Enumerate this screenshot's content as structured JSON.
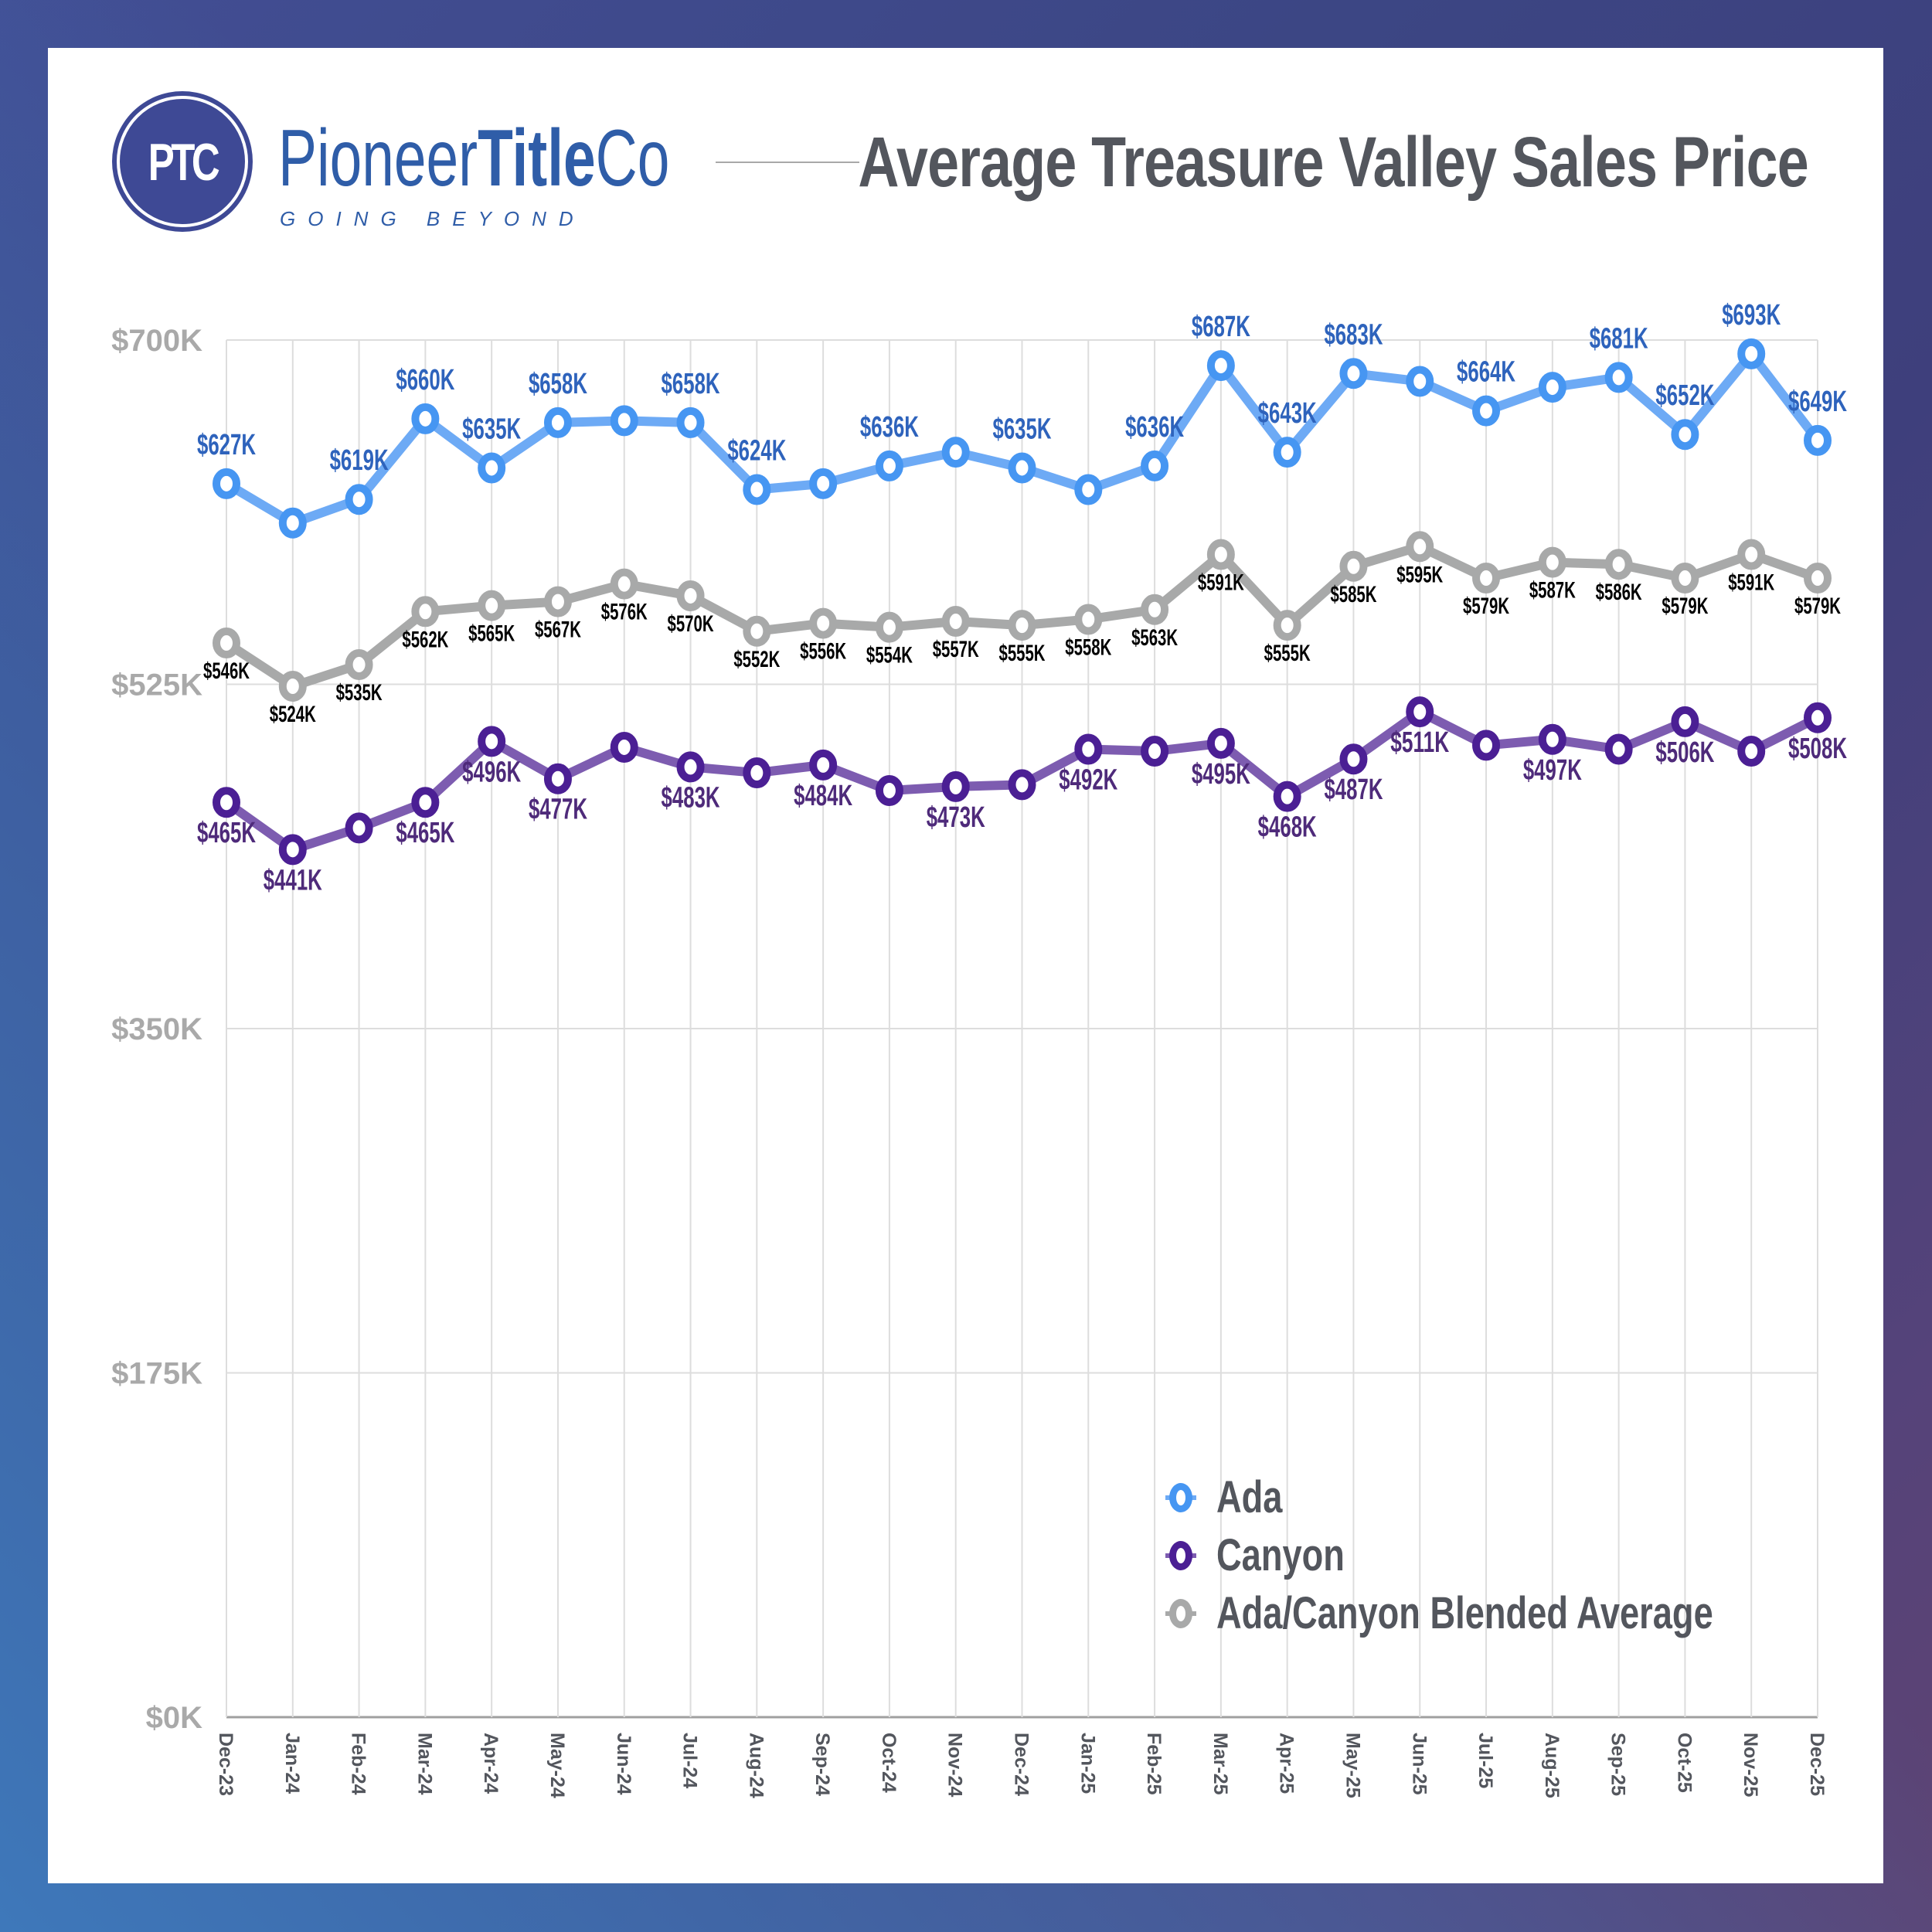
{
  "header": {
    "logo_monogram": "PTC",
    "brand_regular": "Pioneer",
    "brand_bold": "Title",
    "brand_suffix": "Co",
    "tagline": "GOING BEYOND",
    "title": "Average Treasure Valley Sales Price"
  },
  "colors": {
    "ada": "#4696F2",
    "ada_line": "#6DAAF5",
    "ada_label": "#2E63BC",
    "canyon": "#4B1F94",
    "canyon_line": "#7D5CB0",
    "canyon_label": "#4E2A7A",
    "blended": "#A8A9A9",
    "blended_label": "#000000",
    "axis_label": "#A9A9A9",
    "x_label": "#53565D",
    "grid": "#DDDDDD"
  },
  "chart_data": {
    "type": "line",
    "title": "Average Treasure Valley Sales Price",
    "xlabel": "",
    "ylabel": "",
    "categories": [
      "Dec-23",
      "Jan-24",
      "Feb-24",
      "Mar-24",
      "Apr-24",
      "May-24",
      "Jun-24",
      "Jul-24",
      "Aug-24",
      "Sep-24",
      "Oct-24",
      "Nov-24",
      "Dec-24",
      "Jan-25",
      "Feb-25",
      "Mar-25",
      "Apr-25",
      "May-25",
      "Jun-25",
      "Jul-25",
      "Aug-25",
      "Sep-25",
      "Oct-25",
      "Nov-25",
      "Dec-25"
    ],
    "ylim": [
      0,
      700
    ],
    "yticks": [
      0,
      175,
      350,
      525,
      700
    ],
    "ytick_labels": [
      "$0K",
      "$175K",
      "$350K",
      "$525K",
      "$700K"
    ],
    "grid": true,
    "legend_position": "bottom-right",
    "series": [
      {
        "name": "Ada",
        "key": "ada",
        "values": [
          627,
          607,
          619,
          660,
          635,
          658,
          659,
          658,
          624,
          627,
          636,
          643,
          635,
          624,
          636,
          687,
          643,
          683,
          679,
          664,
          676,
          681,
          652,
          693,
          649
        ],
        "labels": [
          "$627K",
          "",
          "$619K",
          "$660K",
          "$635K",
          "$658K",
          "",
          "$658K",
          "$624K",
          "",
          "$636K",
          "",
          "$635K",
          "",
          "$636K",
          "$687K",
          "$643K",
          "$683K",
          "",
          "$664K",
          "",
          "$681K",
          "$652K",
          "$693K",
          "$649K"
        ]
      },
      {
        "name": "Canyon",
        "key": "canyon",
        "values": [
          465,
          441,
          452,
          465,
          496,
          477,
          493,
          483,
          480,
          484,
          471,
          473,
          474,
          492,
          491,
          495,
          468,
          487,
          511,
          494,
          497,
          492,
          506,
          491,
          508
        ],
        "labels": [
          "$465K",
          "$441K",
          "",
          "$465K",
          "$496K",
          "$477K",
          "",
          "$483K",
          "",
          "$484K",
          "",
          "$473K",
          "",
          "$492K",
          "",
          "$495K",
          "$468K",
          "$487K",
          "$511K",
          "",
          "$497K",
          "",
          "$506K",
          "",
          "$508K"
        ]
      },
      {
        "name": "Ada/Canyon Blended Average",
        "key": "blended",
        "values": [
          546,
          524,
          535,
          562,
          565,
          567,
          576,
          570,
          552,
          556,
          554,
          557,
          555,
          558,
          563,
          591,
          555,
          585,
          595,
          579,
          587,
          586,
          579,
          591,
          579
        ],
        "labels": [
          "$546K",
          "$524K",
          "$535K",
          "$562K",
          "$565K",
          "$567K",
          "$576K",
          "$570K",
          "$552K",
          "$556K",
          "$554K",
          "$557K",
          "$555K",
          "$558K",
          "$563K",
          "$591K",
          "$555K",
          "$585K",
          "$595K",
          "$579K",
          "$587K",
          "$586K",
          "$579K",
          "$591K",
          "$579K"
        ]
      }
    ]
  }
}
